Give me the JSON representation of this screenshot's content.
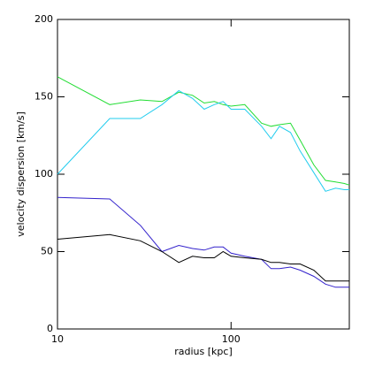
{
  "chart_data": {
    "type": "line",
    "log_x": true,
    "xlabel": "radius [kpc]",
    "ylabel": "velocity dispersion [km/s]",
    "x": [
      10,
      20,
      30,
      40,
      50,
      60,
      70,
      80,
      90,
      100,
      120,
      150,
      170,
      190,
      220,
      250,
      300,
      350,
      400,
      450,
      480
    ],
    "series": [
      {
        "color": "#22dd33",
        "values": [
          163,
          145,
          148,
          147,
          153,
          151,
          146,
          147,
          145,
          144,
          145,
          133,
          131,
          132,
          133,
          122,
          106,
          96,
          95,
          94,
          93
        ]
      },
      {
        "color": "#22ccee",
        "values": [
          100,
          136,
          136,
          145,
          154,
          149,
          142,
          145,
          147,
          142,
          142,
          131,
          123,
          131,
          127,
          115,
          101,
          89,
          91,
          90,
          90
        ]
      },
      {
        "color": "#3322cc",
        "values": [
          85,
          84,
          67,
          50,
          54,
          52,
          51,
          53,
          53,
          49,
          47,
          45,
          39,
          39,
          40,
          38,
          34,
          29,
          27,
          27,
          27
        ]
      },
      {
        "color": "#000000",
        "values": [
          58,
          61,
          57,
          50,
          43,
          47,
          46,
          46,
          50,
          47,
          46,
          45,
          43,
          43,
          42,
          42,
          38,
          31,
          31,
          31,
          31
        ]
      }
    ],
    "xlim": [
      10,
      480
    ],
    "xticks": [
      10,
      100
    ],
    "ylim": [
      0,
      200
    ],
    "yticks": [
      0,
      50,
      100,
      150,
      200
    ]
  }
}
